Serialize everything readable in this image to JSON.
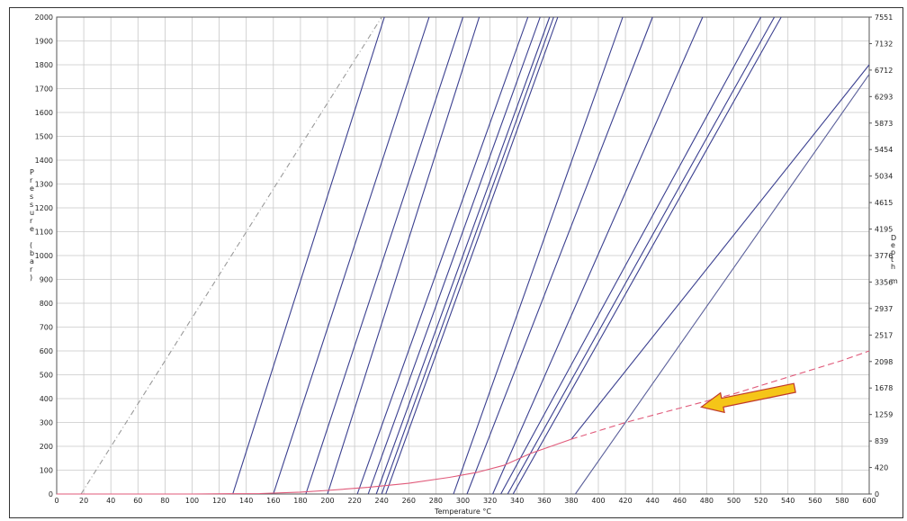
{
  "chart_data": {
    "type": "line",
    "xlabel": "Temperature °C",
    "ylabel": "Pressure (bar)",
    "y2label": "Depth m",
    "xlim": [
      0,
      600
    ],
    "ylim": [
      0,
      2000
    ],
    "x_ticks": [
      0,
      20,
      40,
      60,
      80,
      100,
      120,
      140,
      160,
      180,
      200,
      220,
      240,
      260,
      280,
      300,
      320,
      340,
      360,
      380,
      400,
      420,
      440,
      460,
      480,
      500,
      520,
      540,
      560,
      580,
      600
    ],
    "y_ticks": [
      0,
      100,
      200,
      300,
      400,
      500,
      600,
      700,
      800,
      900,
      1000,
      1100,
      1200,
      1300,
      1400,
      1500,
      1600,
      1700,
      1800,
      1900,
      2000
    ],
    "y2_ticks": [
      "0",
      "420",
      "839",
      "1259",
      "1678",
      "2098",
      "2517",
      "2937",
      "3356",
      "3776",
      "4195",
      "4615",
      "5034",
      "5454",
      "5873",
      "6293",
      "6712",
      "7132",
      "7551"
    ],
    "grid": true,
    "series": [
      {
        "style": "dashdot",
        "color": "#9a9a9a",
        "x": [
          18,
          240
        ],
        "y": [
          0,
          2000
        ]
      },
      {
        "style": "solid",
        "color": "#3a3f8f",
        "x": [
          130,
          242
        ],
        "y": [
          0,
          2000
        ]
      },
      {
        "style": "solid",
        "color": "#3a3f8f",
        "x": [
          160,
          275
        ],
        "y": [
          0,
          2000
        ]
      },
      {
        "style": "solid",
        "color": "#3a3f8f",
        "x": [
          184,
          300
        ],
        "y": [
          0,
          2000
        ]
      },
      {
        "style": "solid",
        "color": "#3a3f8f",
        "x": [
          200,
          312
        ],
        "y": [
          0,
          2000
        ]
      },
      {
        "style": "solid",
        "color": "#3a3f8f",
        "x": [
          222,
          348
        ],
        "y": [
          0,
          2000
        ]
      },
      {
        "style": "solid",
        "color": "#3a3f8f",
        "x": [
          230,
          357
        ],
        "y": [
          0,
          2000
        ]
      },
      {
        "style": "solid",
        "color": "#3a3f8f",
        "x": [
          236,
          364
        ],
        "y": [
          0,
          2000
        ]
      },
      {
        "style": "solid",
        "color": "#3a3f8f",
        "x": [
          240,
          367
        ],
        "y": [
          0,
          2000
        ]
      },
      {
        "style": "solid",
        "color": "#3a3f8f",
        "x": [
          243,
          370
        ],
        "y": [
          0,
          2000
        ]
      },
      {
        "style": "solid",
        "color": "#3a3f8f",
        "x": [
          293,
          418
        ],
        "y": [
          0,
          2000
        ]
      },
      {
        "style": "solid",
        "color": "#3a3f8f",
        "x": [
          303,
          440
        ],
        "y": [
          0,
          2000
        ]
      },
      {
        "style": "solid",
        "color": "#3a3f8f",
        "x": [
          322,
          477
        ],
        "y": [
          0,
          2000
        ]
      },
      {
        "style": "solid",
        "color": "#3a3f8f",
        "x": [
          328,
          520
        ],
        "y": [
          0,
          2000
        ]
      },
      {
        "style": "solid",
        "color": "#3a3f8f",
        "x": [
          333,
          530
        ],
        "y": [
          0,
          2000
        ]
      },
      {
        "style": "solid",
        "color": "#3a3f8f",
        "x": [
          337,
          535
        ],
        "y": [
          0,
          2000
        ]
      },
      {
        "style": "solid",
        "color": "#5a5f9a",
        "x": [
          383,
          600
        ],
        "y": [
          0,
          1760
        ]
      },
      {
        "style": "solid",
        "color": "#3a3f8f",
        "x": [
          380,
          600
        ],
        "y": [
          230,
          1800
        ]
      },
      {
        "style": "solid",
        "color": "#e05a7a",
        "x": [
          0,
          100,
          150,
          180,
          200,
          230,
          260,
          290,
          310,
          330,
          350,
          380
        ],
        "y": [
          0,
          0,
          2,
          8,
          15,
          28,
          45,
          70,
          90,
          120,
          170,
          230
        ]
      },
      {
        "style": "dashed",
        "color": "#e05a7a",
        "x": [
          380,
          420,
          460,
          500,
          540,
          580,
          600
        ],
        "y": [
          230,
          300,
          360,
          420,
          490,
          560,
          600
        ]
      }
    ],
    "annotations": [
      {
        "type": "arrow",
        "color": "#f5c518",
        "outline": "#c0392b",
        "from": [
          545,
          445
        ],
        "to": [
          476,
          365
        ]
      }
    ]
  }
}
